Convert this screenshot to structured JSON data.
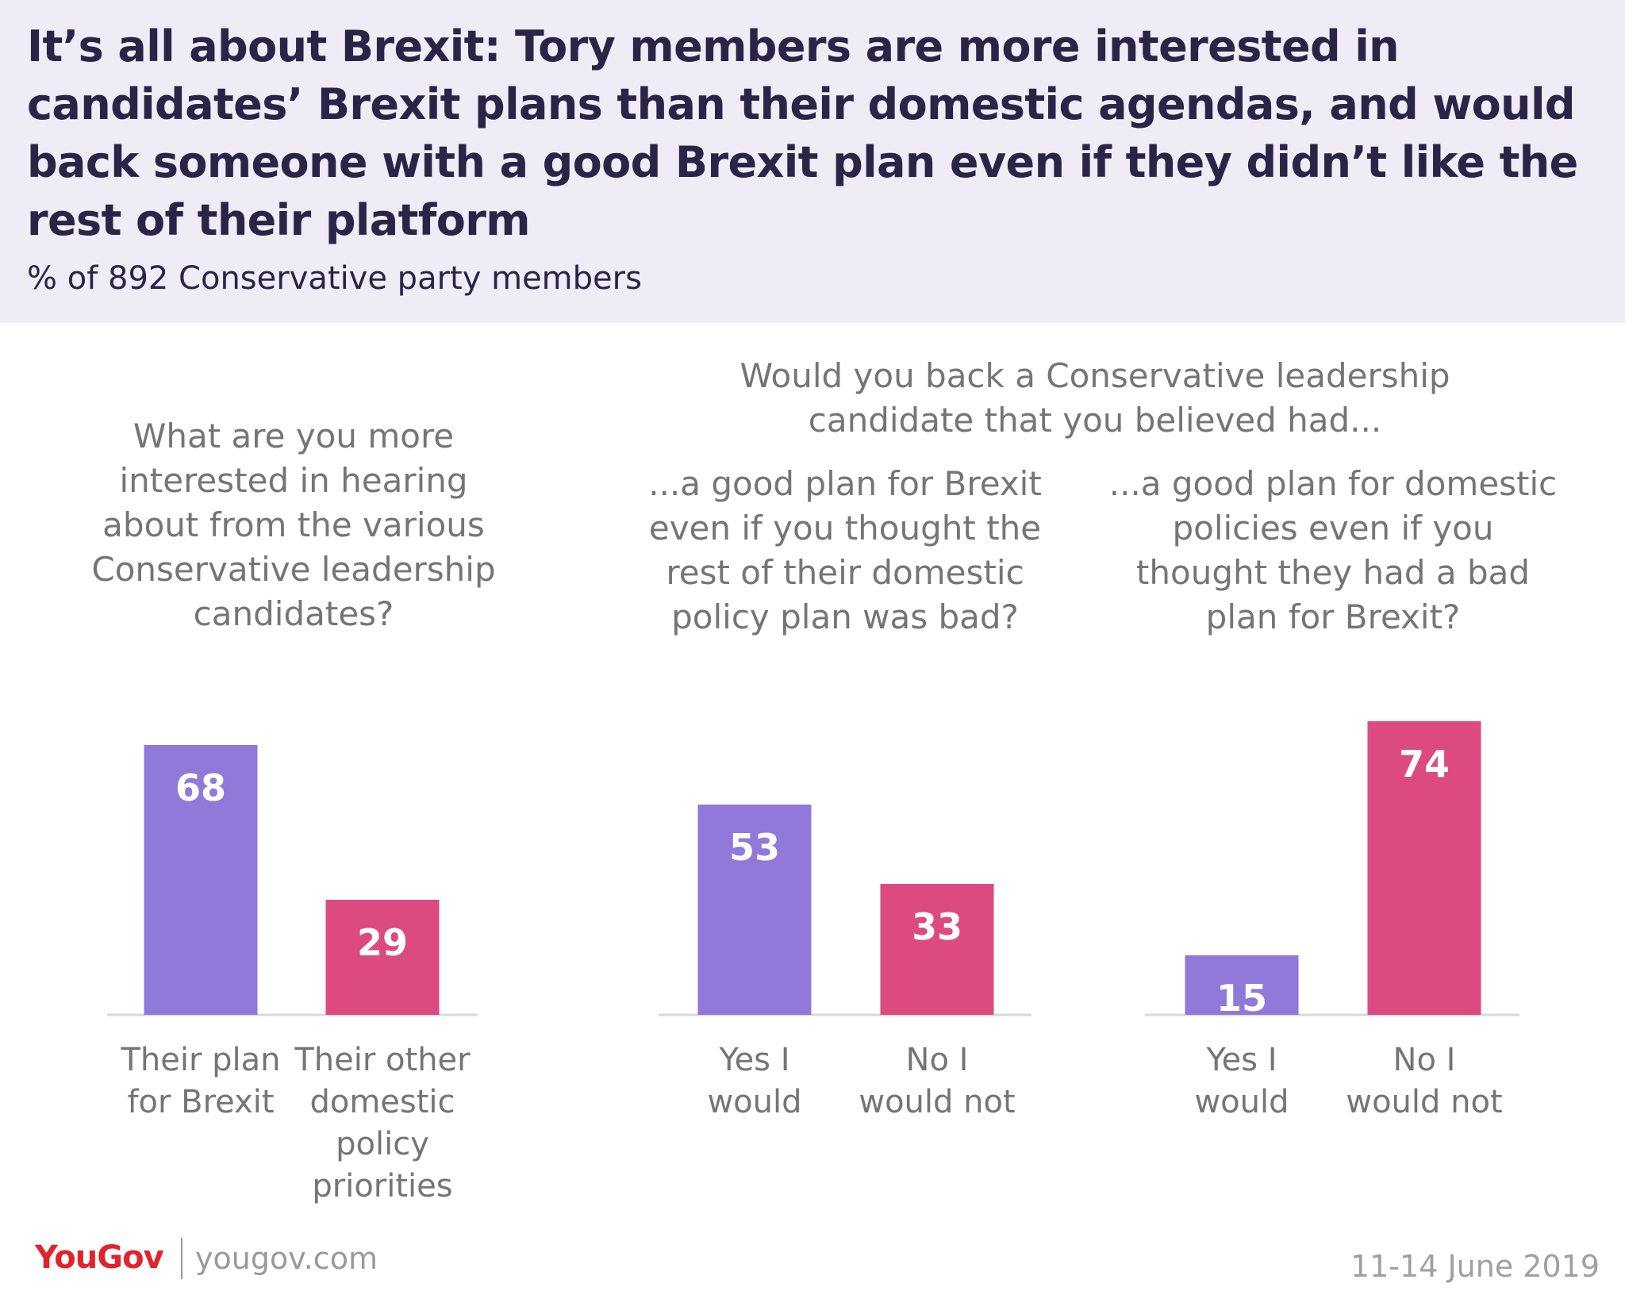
{
  "header": {
    "title": "It’s all about Brexit: Tory members are more interested in candidates’ Brexit plans than their domestic agendas, and would back someone with a good Brexit plan even if they didn’t like the rest of their platform",
    "subtitle": "% of 892 Conservative party members"
  },
  "questions": {
    "q1": "What are you more\ninterested in hearing\nabout from the various\nConservative leadership\ncandidates?",
    "q2_main": "Would you back a Conservative leadership\ncandidate that you believed had...",
    "q2a": "...a good plan for Brexit\neven if you thought the\nrest of their domestic\npolicy plan was bad?",
    "q2b": "...a good plan for domestic\npolicies even if you\nthought they had a bad\nplan for Brexit?"
  },
  "colors": {
    "purple": "#9079d8",
    "pink": "#dc4a80",
    "baseline": "#d9d9d9"
  },
  "chart_data": [
    {
      "type": "bar",
      "categories": [
        "Their plan\nfor Brexit",
        "Their other\ndomestic\npolicy\npriorities"
      ],
      "values": [
        68,
        29
      ],
      "ylim": [
        0,
        100
      ]
    },
    {
      "type": "bar",
      "categories": [
        "Yes I\nwould",
        "No I\nwould not"
      ],
      "values": [
        53,
        33
      ],
      "ylim": [
        0,
        100
      ]
    },
    {
      "type": "bar",
      "categories": [
        "Yes I\nwould",
        "No I\nwould not"
      ],
      "values": [
        15,
        74
      ],
      "ylim": [
        0,
        100
      ]
    }
  ],
  "footer": {
    "logo": "YouGov",
    "url": "yougov.com",
    "date": "11-14 June 2019"
  }
}
